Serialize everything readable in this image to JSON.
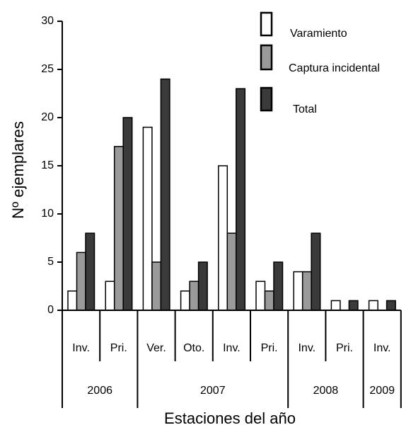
{
  "chart_data": {
    "type": "bar",
    "ylabel": "Nº ejemplares",
    "xlabel": "Estaciones del año",
    "groups": [
      {
        "name": "2006",
        "categories": [
          "Inv.",
          "Pri."
        ]
      },
      {
        "name": "2007",
        "categories": [
          "Ver.",
          "Oto.",
          "Inv.",
          "Pri."
        ]
      },
      {
        "name": "2008",
        "categories": [
          "Inv.",
          "Pri."
        ]
      },
      {
        "name": "2009",
        "categories": [
          "Inv."
        ]
      }
    ],
    "series": [
      {
        "name": "Varamiento",
        "color": "#ffffff",
        "values": [
          2,
          3,
          19,
          2,
          15,
          3,
          4,
          1,
          1
        ]
      },
      {
        "name": "Captura incidental",
        "color": "#9a9a9a",
        "values": [
          6,
          17,
          5,
          3,
          8,
          2,
          4,
          0,
          0
        ]
      },
      {
        "name": "Total",
        "color": "#3a3a3a",
        "values": [
          8,
          20,
          24,
          5,
          23,
          5,
          8,
          1,
          1
        ]
      }
    ],
    "ylim": [
      0,
      30
    ],
    "yticks": [
      0,
      5,
      10,
      15,
      20,
      25,
      30
    ]
  }
}
